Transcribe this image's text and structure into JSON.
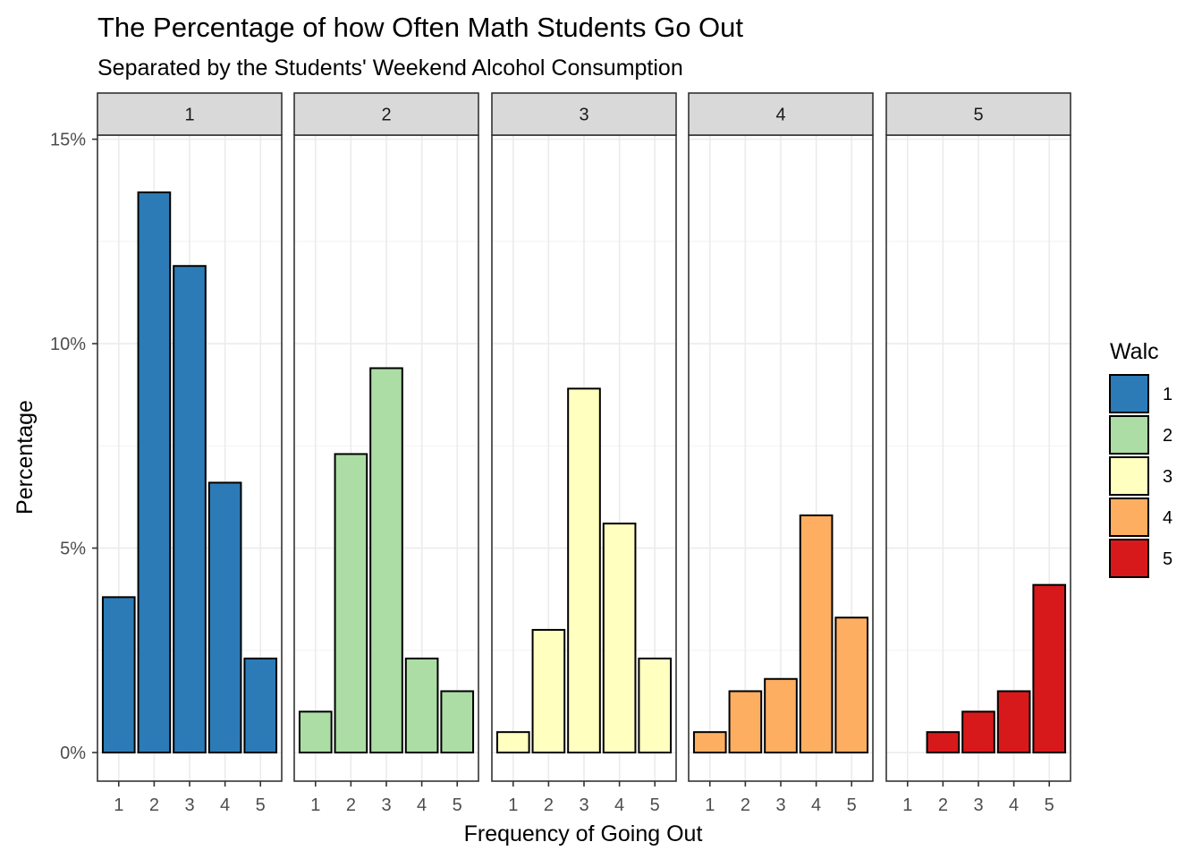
{
  "chart_data": {
    "type": "bar",
    "title": "The Percentage of how Often Math Students Go Out",
    "subtitle": "Separated by the Students' Weekend Alcohol Consumption",
    "xlabel": "Frequency of Going Out",
    "ylabel": "Percentage",
    "categories": [
      "1",
      "2",
      "3",
      "4",
      "5"
    ],
    "y_ticks": [
      "0%",
      "5%",
      "10%",
      "15%"
    ],
    "y_tick_values": [
      0,
      5,
      10,
      15
    ],
    "ylim": [
      -0.7,
      15.1
    ],
    "grid": true,
    "legend": {
      "title": "Walc",
      "position": "right",
      "entries": [
        "1",
        "2",
        "3",
        "4",
        "5"
      ]
    },
    "panels": [
      {
        "label": "1",
        "color": "#2C7BB6",
        "values": [
          3.8,
          13.7,
          11.9,
          6.6,
          2.3
        ]
      },
      {
        "label": "2",
        "color": "#ABDDA4",
        "values": [
          1.0,
          7.3,
          9.4,
          2.3,
          1.5
        ]
      },
      {
        "label": "3",
        "color": "#FFFFBF",
        "values": [
          0.5,
          3.0,
          8.9,
          5.6,
          2.3
        ]
      },
      {
        "label": "4",
        "color": "#FDAE61",
        "values": [
          0.5,
          1.5,
          1.8,
          5.8,
          3.3
        ]
      },
      {
        "label": "5",
        "color": "#D7191C",
        "values": [
          0,
          0.5,
          1.0,
          1.5,
          4.1
        ]
      }
    ]
  }
}
